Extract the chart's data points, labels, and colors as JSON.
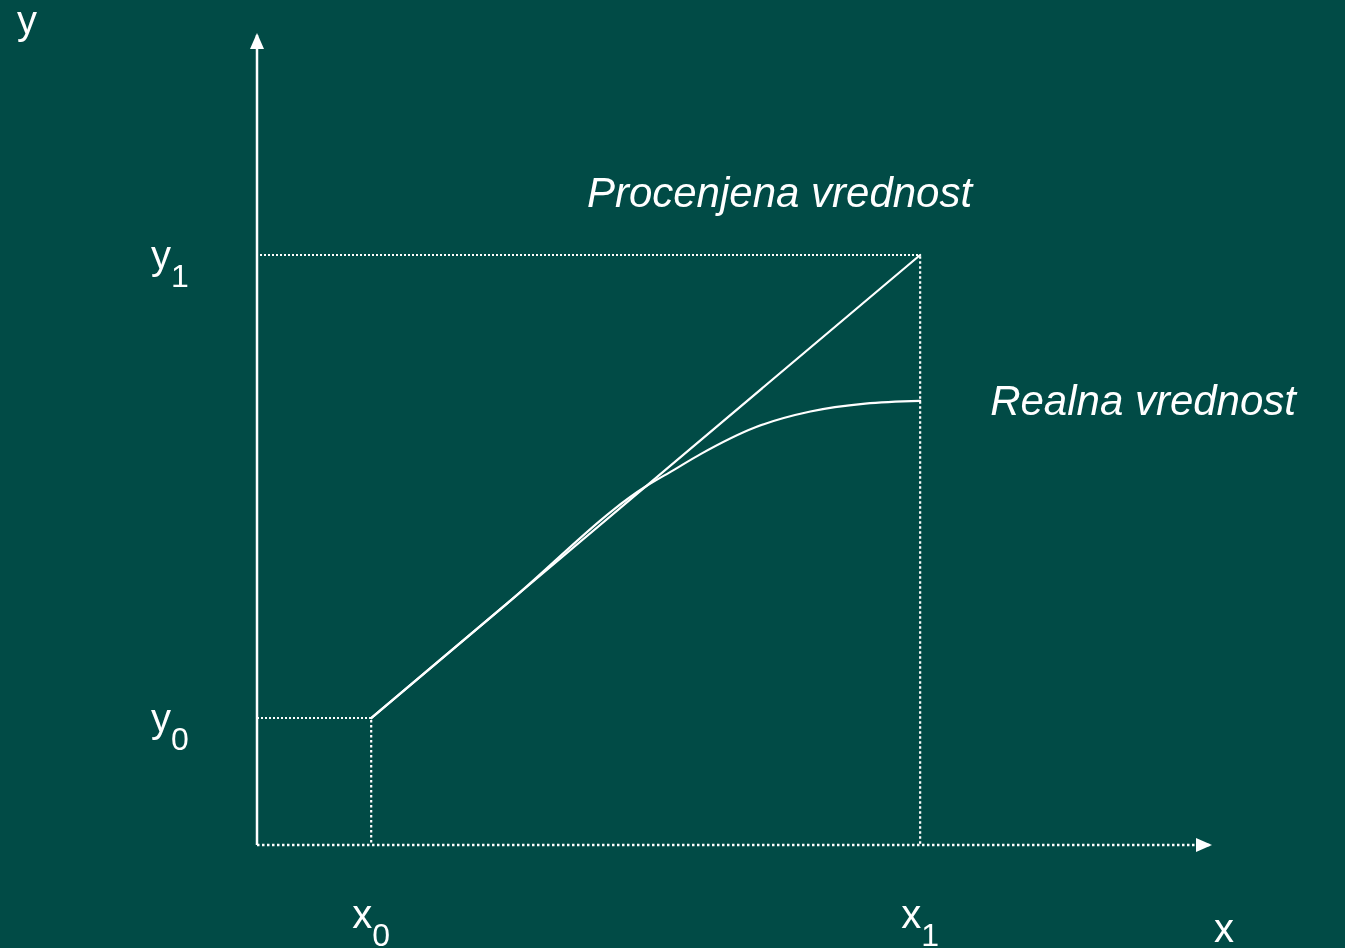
{
  "chart_data": {
    "type": "line",
    "xlabel": "x",
    "ylabel": "y",
    "xlim": [
      -0.208,
      1.528
    ],
    "ylim": [
      -0.274,
      1.475
    ],
    "xticks": [
      {
        "value": 0,
        "label": "x$_{0}$"
      },
      {
        "value": 1,
        "label": "x$_{1}$"
      }
    ],
    "yticks": [
      {
        "value": 0,
        "label": "y$_{0}$"
      },
      {
        "value": 1,
        "label": "y$_{1}$"
      }
    ],
    "series": [
      {
        "name": "Procenjena vrednost",
        "color": "#ffffff",
        "x": [
          0,
          1
        ],
        "values": [
          0,
          1
        ]
      },
      {
        "name": "Realna vrednost",
        "color": "#ffffff",
        "x": [
          0,
          0.25,
          0.5,
          0.55,
          0.6,
          0.7,
          0.8,
          0.9,
          1
        ],
        "values": [
          0,
          0.25,
          0.5,
          0.535,
          0.57,
          0.628,
          0.662,
          0.679,
          0.685
        ]
      }
    ],
    "ref_lines": [
      {
        "axis": "y",
        "value": 0,
        "line_style": "dotted"
      },
      {
        "axis": "y",
        "value": 1,
        "line_style": "dotted"
      },
      {
        "axis": "x",
        "value": 0,
        "line_style": "dotted"
      },
      {
        "axis": "x",
        "value": 1,
        "line_style": "dotted"
      }
    ],
    "legend": false,
    "marker": "none",
    "line_style": "solid",
    "grid": false
  }
}
